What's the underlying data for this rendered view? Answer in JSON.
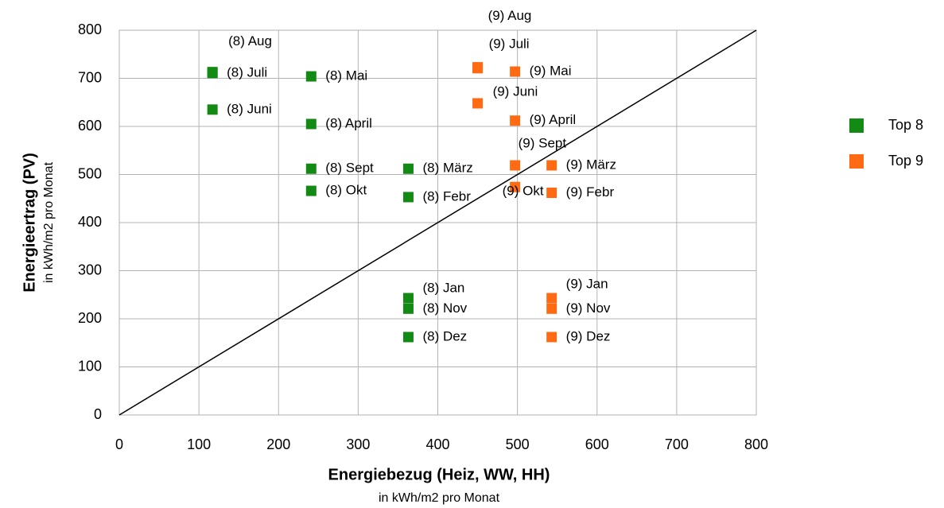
{
  "chart_data": {
    "type": "scatter",
    "xlabel": "Energiebezug (Heiz, WW, HH)",
    "xlabel_sub": "in kWh/m2 pro Monat",
    "ylabel": "Energieertrag (PV)",
    "ylabel_sub": "in kWh/m2 pro Monat",
    "xlim": [
      0,
      800
    ],
    "xticks": [
      0,
      100,
      200,
      300,
      400,
      500,
      600,
      700,
      800
    ],
    "ylim": [
      0,
      800
    ],
    "yticks": [
      0,
      100,
      200,
      300,
      400,
      500,
      600,
      700,
      800
    ],
    "grid": true,
    "legend": "right",
    "diagonal": true,
    "series": [
      {
        "name": "Top 8",
        "color": "#138a13",
        "labels": [
          "(8) Jan",
          "(8) Febr",
          "(8) März",
          "(8) April",
          "(8) Mai",
          "(8) Juni",
          "(8) Juli",
          "(8) Aug",
          "(8) Sept",
          "(8) Okt",
          "(8) Nov",
          "(8) Dez"
        ],
        "x": [
          363,
          363,
          363,
          241,
          241,
          117,
          117,
          117,
          241,
          241,
          363,
          363
        ],
        "values": [
          243,
          453,
          512,
          605,
          704,
          635,
          711,
          713,
          512,
          466,
          221,
          162
        ]
      },
      {
        "name": "Top 9",
        "color": "#ff6a13",
        "labels": [
          "(9) Jan",
          "(9) Febr",
          "(9) März",
          "(9) April",
          "(9) Mai",
          "(9) Juni",
          "(9) Juli",
          "(9) Aug",
          "(9) Sept",
          "(9) Okt",
          "(9) Nov",
          "(9) Dez"
        ],
        "x": [
          543,
          543,
          543,
          497,
          497,
          450,
          450,
          450,
          497,
          497,
          543,
          543
        ],
        "values": [
          243,
          462,
          519,
          612,
          714,
          648,
          721,
          723,
          519,
          474,
          221,
          162
        ]
      }
    ]
  }
}
